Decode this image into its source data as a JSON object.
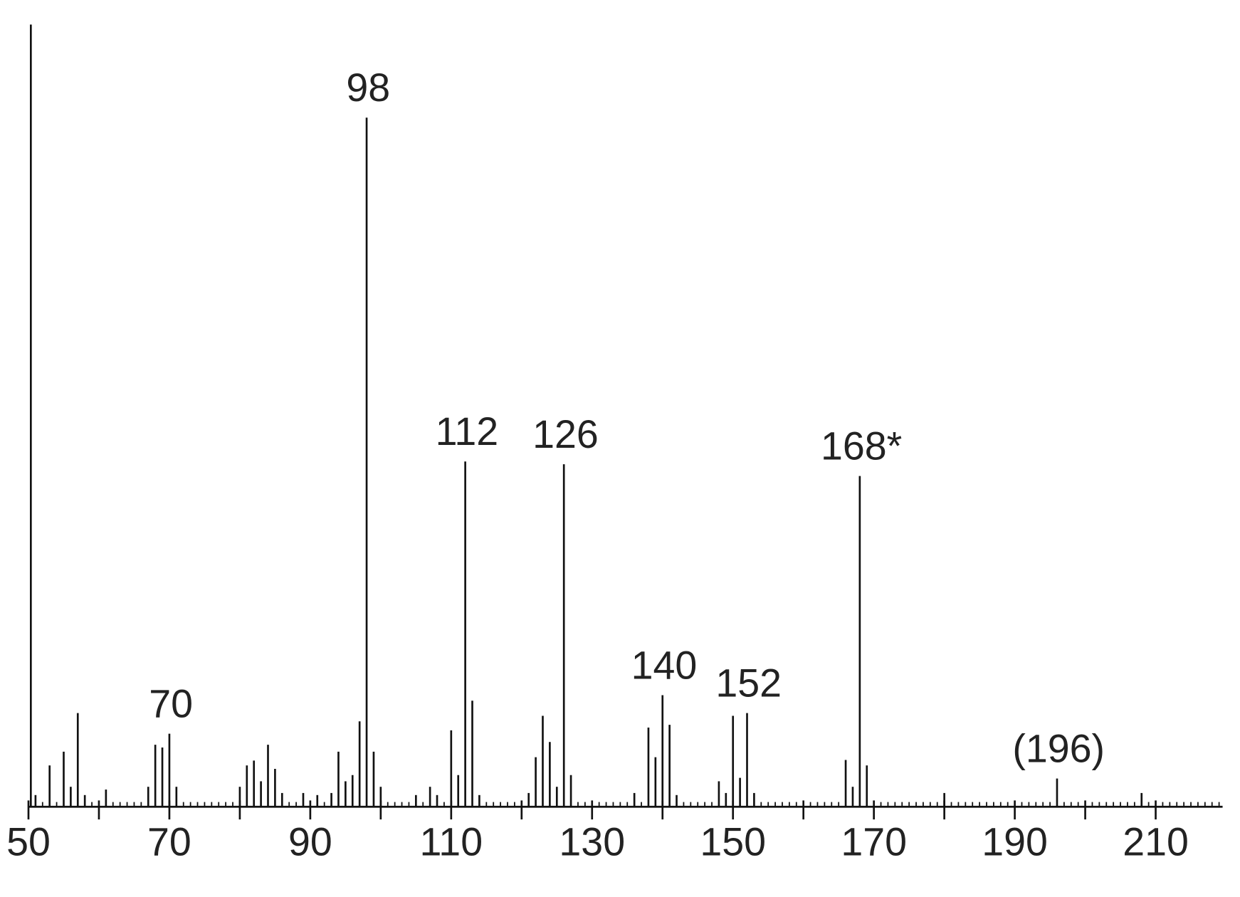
{
  "chart_data": {
    "type": "stem",
    "color": "#111111",
    "x": [
      51,
      53,
      55,
      56,
      57,
      58,
      61,
      67,
      68,
      69,
      70,
      71,
      80,
      81,
      82,
      83,
      84,
      85,
      86,
      89,
      91,
      93,
      94,
      95,
      96,
      97,
      98,
      99,
      100,
      105,
      107,
      108,
      110,
      111,
      112,
      113,
      114,
      121,
      122,
      123,
      124,
      125,
      126,
      127,
      136,
      138,
      139,
      140,
      141,
      142,
      148,
      149,
      150,
      151,
      152,
      153,
      166,
      167,
      168,
      169,
      180,
      196,
      208
    ],
    "values": [
      1.7,
      6,
      8,
      2.9,
      13.6,
      1.7,
      2.5,
      2.9,
      9,
      8.6,
      10.6,
      2.9,
      2.9,
      6,
      6.7,
      3.7,
      9,
      5.5,
      2,
      2,
      1.7,
      2,
      8,
      3.7,
      4.6,
      12.4,
      100,
      8,
      2.9,
      1.7,
      2.9,
      1.7,
      11.1,
      4.6,
      50.1,
      15.4,
      1.7,
      2,
      7.2,
      13.2,
      9.4,
      2.9,
      49.7,
      4.6,
      2,
      11.5,
      7.2,
      16.2,
      11.9,
      1.7,
      3.7,
      2,
      13.2,
      4.2,
      13.6,
      2,
      6.8,
      2.9,
      48,
      6,
      2,
      4.1,
      2
    ],
    "peak_labels": [
      {
        "x": 70,
        "label": "70"
      },
      {
        "x": 98,
        "label": "98"
      },
      {
        "x": 112,
        "label": "112"
      },
      {
        "x": 126,
        "label": "126"
      },
      {
        "x": 140,
        "label": "140"
      },
      {
        "x": 152,
        "label": "152"
      },
      {
        "x": 168,
        "label": "168*"
      },
      {
        "x": 196,
        "label": "(196)"
      }
    ],
    "xlim": [
      50,
      219.5
    ],
    "ylim": [
      0,
      113.5
    ],
    "xticks": [
      50,
      70,
      90,
      110,
      130,
      150,
      170,
      190,
      210
    ],
    "xticks_unlabeled": [
      60,
      80,
      100,
      120,
      140,
      160,
      180,
      200
    ],
    "minor_tick_step": 1
  }
}
